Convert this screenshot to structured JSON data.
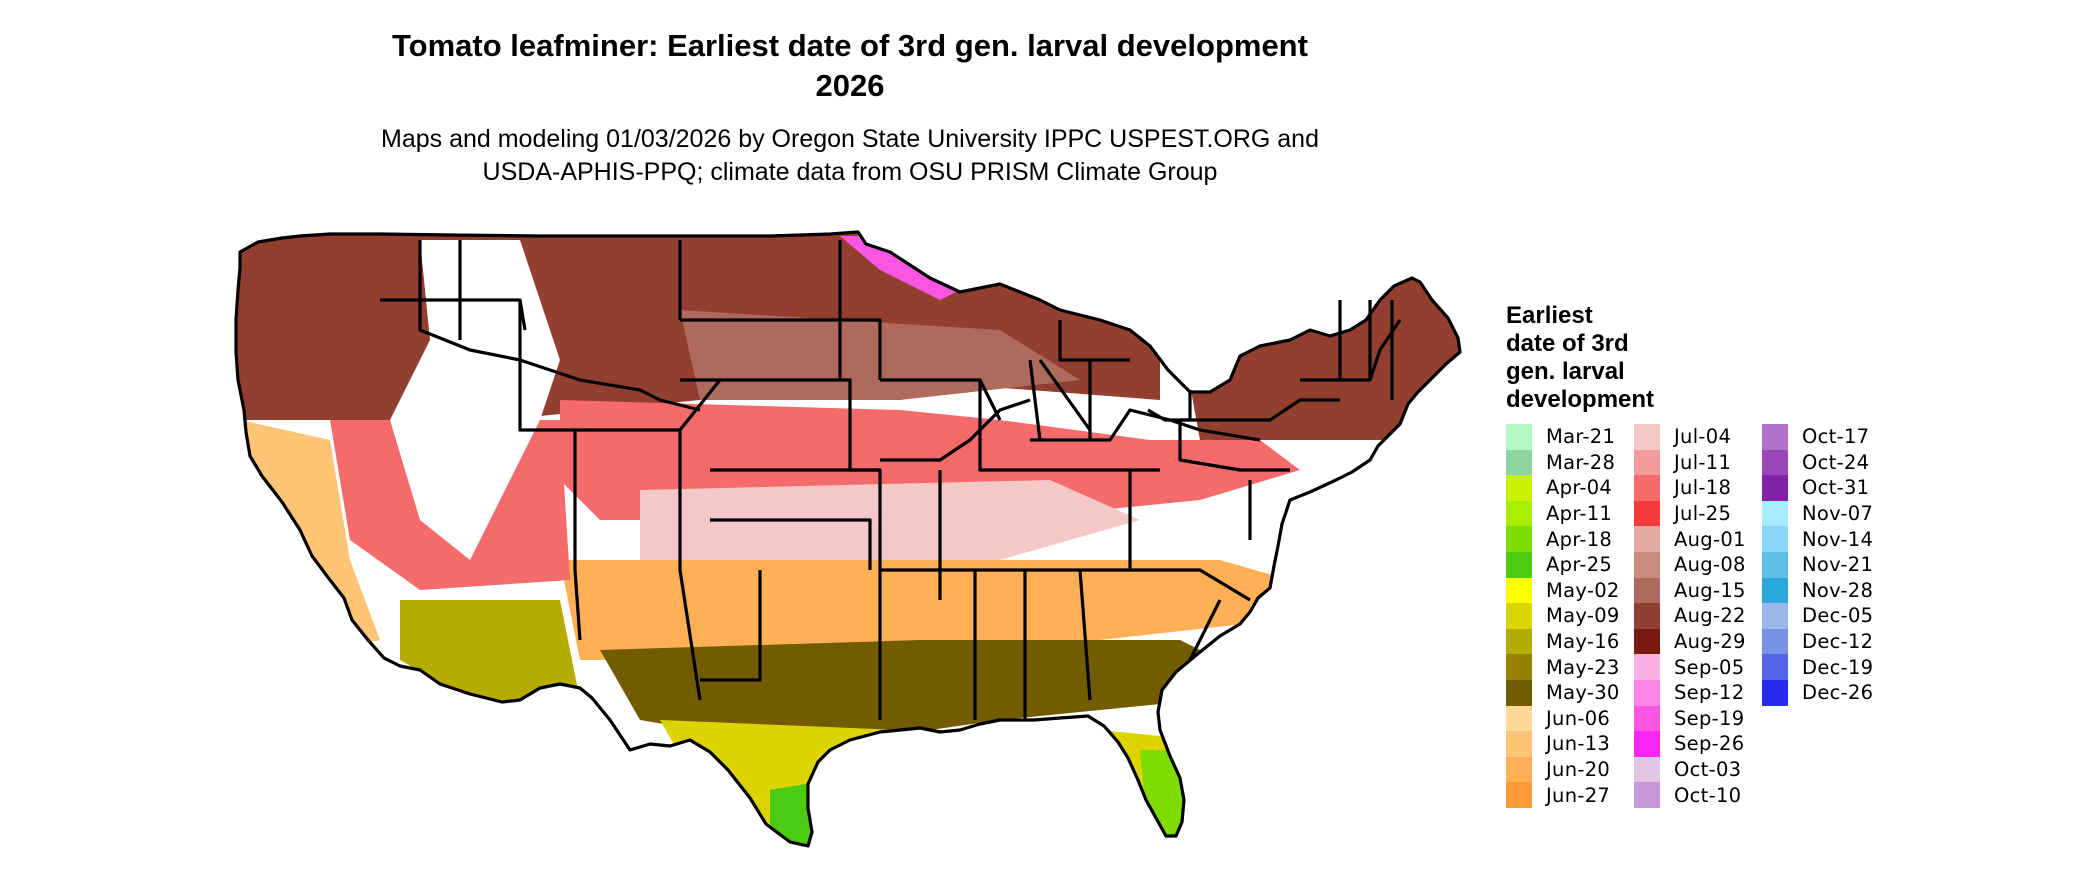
{
  "title_line1": "Tomato leafminer: Earliest date of 3rd gen. larval development",
  "title_line2": "2026",
  "subtitle_line1": "Maps and modeling 01/03/2026 by Oregon State University IPPC USPEST.ORG and",
  "subtitle_line2": "USDA-APHIS-PPQ; climate data from OSU PRISM Climate Group",
  "legend": {
    "title_lines": [
      "Earliest",
      "date of 3rd",
      "gen. larval",
      "development"
    ],
    "columns": [
      [
        {
          "label": "Mar-21",
          "color": "#b3f7c4"
        },
        {
          "label": "Mar-28",
          "color": "#8dd39d"
        },
        {
          "label": "Apr-04",
          "color": "#c8f200"
        },
        {
          "label": "Apr-11",
          "color": "#a8ec00"
        },
        {
          "label": "Apr-18",
          "color": "#7edc00"
        },
        {
          "label": "Apr-25",
          "color": "#4ccc10"
        },
        {
          "label": "May-02",
          "color": "#ffff00"
        },
        {
          "label": "May-09",
          "color": "#dcd300"
        },
        {
          "label": "May-16",
          "color": "#b6ac00"
        },
        {
          "label": "May-23",
          "color": "#958300"
        },
        {
          "label": "May-30",
          "color": "#735c00"
        },
        {
          "label": "Jun-06",
          "color": "#ffd995"
        },
        {
          "label": "Jun-13",
          "color": "#ffc475"
        },
        {
          "label": "Jun-20",
          "color": "#ffaf55"
        },
        {
          "label": "Jun-27",
          "color": "#ff9a3a"
        }
      ],
      [
        {
          "label": "Jul-04",
          "color": "#f5c8c8"
        },
        {
          "label": "Jul-11",
          "color": "#f59a9a"
        },
        {
          "label": "Jul-18",
          "color": "#f56a6a"
        },
        {
          "label": "Jul-25",
          "color": "#f53a3a"
        },
        {
          "label": "Aug-01",
          "color": "#e4aaa2"
        },
        {
          "label": "Aug-08",
          "color": "#c98a7f"
        },
        {
          "label": "Aug-15",
          "color": "#ae6a5c"
        },
        {
          "label": "Aug-22",
          "color": "#933f30"
        },
        {
          "label": "Aug-29",
          "color": "#7a1a0e"
        },
        {
          "label": "Sep-05",
          "color": "#fbb1e4"
        },
        {
          "label": "Sep-12",
          "color": "#fb85e4"
        },
        {
          "label": "Sep-19",
          "color": "#fb55e4"
        },
        {
          "label": "Sep-26",
          "color": "#fb25f4"
        },
        {
          "label": "Oct-03",
          "color": "#e2c4e4"
        },
        {
          "label": "Oct-10",
          "color": "#c898d8"
        }
      ],
      [
        {
          "label": "Oct-17",
          "color": "#b071c8"
        },
        {
          "label": "Oct-24",
          "color": "#9a48b8"
        },
        {
          "label": "Oct-31",
          "color": "#8222a8"
        },
        {
          "label": "Nov-07",
          "color": "#aaeaff"
        },
        {
          "label": "Nov-14",
          "color": "#86d6f4"
        },
        {
          "label": "Nov-21",
          "color": "#5cc0ea"
        },
        {
          "label": "Nov-28",
          "color": "#2aa8dc"
        },
        {
          "label": "Dec-05",
          "color": "#9ab8ea"
        },
        {
          "label": "Dec-12",
          "color": "#7892e8"
        },
        {
          "label": "Dec-19",
          "color": "#5666e8"
        },
        {
          "label": "Dec-26",
          "color": "#2a2aee"
        }
      ]
    ]
  },
  "map_regions": [
    {
      "name": "northern-plains",
      "color": "#933f30"
    },
    {
      "name": "upper-midwest",
      "color": "#ae6a5c"
    },
    {
      "name": "northeast",
      "color": "#933f30"
    },
    {
      "name": "central-band",
      "color": "#f56a6a"
    },
    {
      "name": "mid-south",
      "color": "#f5c8c8"
    },
    {
      "name": "southern-band",
      "color": "#ffaf55"
    },
    {
      "name": "gulf-band",
      "color": "#735c00"
    },
    {
      "name": "gulf-coast",
      "color": "#dcd300"
    },
    {
      "name": "south-texas",
      "color": "#4ccc10"
    },
    {
      "name": "florida",
      "color": "#7edc00"
    },
    {
      "name": "desert-southwest",
      "color": "#b6ac00"
    },
    {
      "name": "california-valley",
      "color": "#ffc475"
    },
    {
      "name": "mountain-west",
      "color": "#f56a6a"
    },
    {
      "name": "high-elevation",
      "color": "#ffffff"
    },
    {
      "name": "northern-fringe",
      "color": "#fb55e4"
    }
  ]
}
